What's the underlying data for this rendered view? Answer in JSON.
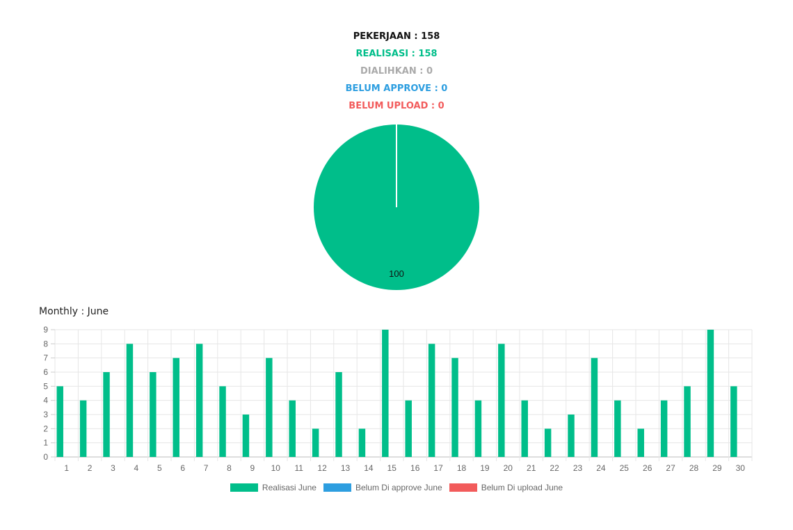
{
  "summary": {
    "pekerjaan": "PEKERJAAN : 158",
    "realisasi": "REALISASI : 158",
    "dialihkan": "DIALIHKAN : 0",
    "belum_approve": "BELUM APPROVE : 0",
    "belum_upload": "BELUM UPLOAD : 0"
  },
  "colors": {
    "realisasi": "#00be8a",
    "belum_approve": "#2d9ee0",
    "belum_upload": "#f25b5b",
    "dialihkan": "#aaaaaa"
  },
  "monthly_title": "Monthly : June",
  "chart_data": [
    {
      "type": "pie",
      "slices": [
        {
          "label": "Realisasi",
          "value": 100,
          "color": "#00be8a"
        }
      ],
      "data_labels": [
        "100"
      ]
    },
    {
      "type": "bar",
      "categories": [
        "1",
        "2",
        "3",
        "4",
        "5",
        "6",
        "7",
        "8",
        "9",
        "10",
        "11",
        "12",
        "13",
        "14",
        "15",
        "16",
        "17",
        "18",
        "19",
        "20",
        "21",
        "22",
        "23",
        "24",
        "25",
        "26",
        "27",
        "28",
        "29",
        "30"
      ],
      "series": [
        {
          "name": "Realisasi June",
          "color": "#00be8a",
          "values": [
            5,
            4,
            6,
            8,
            6,
            7,
            8,
            5,
            3,
            7,
            4,
            2,
            6,
            2,
            9,
            4,
            8,
            7,
            4,
            8,
            4,
            2,
            3,
            7,
            4,
            2,
            4,
            5,
            9,
            5
          ]
        },
        {
          "name": "Belum Di approve June",
          "color": "#2d9ee0",
          "values": [
            0,
            0,
            0,
            0,
            0,
            0,
            0,
            0,
            0,
            0,
            0,
            0,
            0,
            0,
            0,
            0,
            0,
            0,
            0,
            0,
            0,
            0,
            0,
            0,
            0,
            0,
            0,
            0,
            0,
            0
          ]
        },
        {
          "name": "Belum Di upload June",
          "color": "#f25b5b",
          "values": [
            0,
            0,
            0,
            0,
            0,
            0,
            0,
            0,
            0,
            0,
            0,
            0,
            0,
            0,
            0,
            0,
            0,
            0,
            0,
            0,
            0,
            0,
            0,
            0,
            0,
            0,
            0,
            0,
            0,
            0
          ]
        }
      ],
      "y_ticks": [
        "0",
        "1",
        "2",
        "3",
        "4",
        "5",
        "6",
        "7",
        "8",
        "9"
      ],
      "ylim": [
        0,
        9
      ],
      "grid": true,
      "legend_position": "bottom"
    }
  ]
}
